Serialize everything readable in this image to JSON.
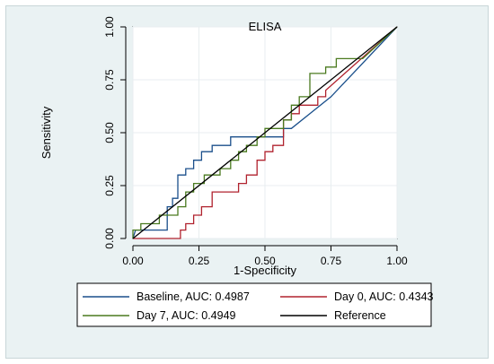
{
  "chart_data": {
    "type": "line",
    "title": "ELISA",
    "xlabel": "1-Specificity",
    "ylabel": "Sensitivity",
    "xlim": [
      0,
      1
    ],
    "ylim": [
      0,
      1
    ],
    "x_ticks": [
      "0.00",
      "0.25",
      "0.50",
      "0.75",
      "1.00"
    ],
    "y_ticks": [
      "0.00",
      "0.25",
      "0.50",
      "0.75",
      "1.00"
    ],
    "x_tick_values": [
      0,
      0.25,
      0.5,
      0.75,
      1
    ],
    "y_tick_values": [
      0,
      0.25,
      0.5,
      0.75,
      1
    ],
    "grid": true,
    "legend_position": "bottom",
    "series": [
      {
        "name": "Baseline, AUC: 0.4987",
        "color": "#1a4f8b",
        "x": [
          0,
          0.01,
          0.13,
          0.13,
          0.15,
          0.15,
          0.17,
          0.17,
          0.2,
          0.2,
          0.23,
          0.23,
          0.26,
          0.26,
          0.3,
          0.3,
          0.33,
          0.33,
          0.37,
          0.37,
          0.5,
          0.57,
          0.57,
          0.6,
          0.75,
          1
        ],
        "y": [
          0,
          0.04,
          0.04,
          0.15,
          0.15,
          0.19,
          0.19,
          0.3,
          0.3,
          0.33,
          0.33,
          0.37,
          0.37,
          0.41,
          0.41,
          0.44,
          0.44,
          0.44,
          0.44,
          0.48,
          0.48,
          0.48,
          0.52,
          0.52,
          0.67,
          1
        ]
      },
      {
        "name": "Day 0, AUC: 0.4343",
        "color": "#b0222e",
        "x": [
          0,
          0.02,
          0.07,
          0.07,
          0.18,
          0.18,
          0.2,
          0.2,
          0.23,
          0.23,
          0.26,
          0.26,
          0.3,
          0.3,
          0.4,
          0.4,
          0.43,
          0.43,
          0.47,
          0.47,
          0.5,
          0.5,
          0.53,
          0.53,
          0.57,
          0.57,
          0.6,
          0.6,
          0.63,
          0.63,
          0.67,
          0.67,
          0.7,
          0.7,
          0.73,
          0.73,
          1
        ],
        "y": [
          0,
          0,
          0,
          0,
          0,
          0.04,
          0.04,
          0.07,
          0.07,
          0.11,
          0.11,
          0.15,
          0.15,
          0.22,
          0.22,
          0.26,
          0.26,
          0.3,
          0.3,
          0.37,
          0.37,
          0.41,
          0.41,
          0.44,
          0.44,
          0.56,
          0.56,
          0.59,
          0.59,
          0.63,
          0.63,
          0.63,
          0.63,
          0.67,
          0.67,
          0.7,
          1
        ]
      },
      {
        "name": "Day 7, AUC: 0.4949",
        "color": "#4a7a1f",
        "x": [
          0,
          0,
          0.03,
          0.03,
          0.07,
          0.07,
          0.1,
          0.1,
          0.17,
          0.17,
          0.2,
          0.2,
          0.23,
          0.23,
          0.27,
          0.27,
          0.33,
          0.33,
          0.37,
          0.37,
          0.4,
          0.4,
          0.43,
          0.43,
          0.47,
          0.47,
          0.5,
          0.5,
          0.57,
          0.57,
          0.6,
          0.6,
          0.63,
          0.63,
          0.67,
          0.67,
          0.73,
          0.73,
          0.77,
          0.77,
          0.83,
          0.83,
          0.87,
          1
        ],
        "y": [
          0,
          0.04,
          0.04,
          0.07,
          0.07,
          0.07,
          0.07,
          0.11,
          0.11,
          0.15,
          0.15,
          0.22,
          0.22,
          0.26,
          0.26,
          0.3,
          0.3,
          0.33,
          0.33,
          0.37,
          0.37,
          0.41,
          0.41,
          0.44,
          0.44,
          0.48,
          0.48,
          0.52,
          0.52,
          0.56,
          0.56,
          0.63,
          0.63,
          0.67,
          0.67,
          0.78,
          0.78,
          0.81,
          0.81,
          0.85,
          0.85,
          0.85,
          0.85,
          1
        ]
      },
      {
        "name": "Reference",
        "color": "#000000",
        "x": [
          0,
          1
        ],
        "y": [
          0,
          1
        ]
      }
    ]
  }
}
